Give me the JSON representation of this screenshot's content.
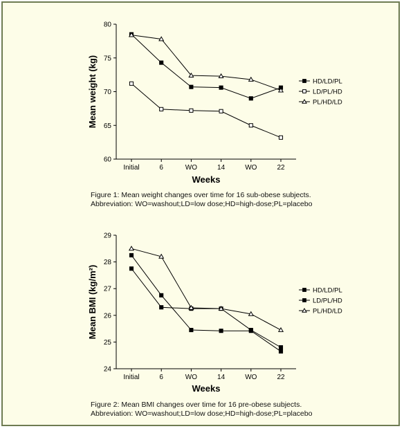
{
  "chart_data": [
    {
      "type": "line",
      "title": "",
      "xlabel": "Weeks",
      "ylabel": "Mean weight (kg)",
      "categories": [
        "Initial",
        "6",
        "WO",
        "14",
        "WO",
        "22"
      ],
      "ylim": [
        60,
        80
      ],
      "yticks": [
        "60",
        "65",
        "70",
        "75",
        "80"
      ],
      "grid": false,
      "legend_position": "right",
      "series": [
        {
          "name": "HD/LD/PL",
          "marker": "filled-square",
          "values": [
            78.5,
            74.3,
            70.7,
            70.6,
            69.0,
            70.6
          ]
        },
        {
          "name": "LD/PL/HD",
          "marker": "open-square",
          "values": [
            71.2,
            67.4,
            67.2,
            67.1,
            65.0,
            63.2
          ]
        },
        {
          "name": "PL/HD/LD",
          "marker": "open-triangle",
          "values": [
            78.4,
            77.8,
            72.4,
            72.3,
            71.8,
            70.2
          ]
        }
      ],
      "caption": [
        "Figure 1: Mean weight changes over time for 16 sub-obese subjects.",
        "Abbreviation: WO=washout;LD=low dose;HD=high-dose;PL=placebo"
      ]
    },
    {
      "type": "line",
      "title": "",
      "xlabel": "Weeks",
      "ylabel": "Mean BMI (kg/m²)",
      "categories": [
        "Initial",
        "6",
        "WO",
        "14",
        "WO",
        "22"
      ],
      "ylim": [
        24,
        29
      ],
      "yticks": [
        "24",
        "25",
        "26",
        "27",
        "28",
        "29"
      ],
      "grid": false,
      "legend_position": "right",
      "series": [
        {
          "name": "HD/LD/PL",
          "marker": "filled-square",
          "values": [
            27.75,
            26.3,
            26.25,
            26.25,
            25.45,
            24.8
          ]
        },
        {
          "name": "LD/PL/HD",
          "marker": "filled-square",
          "values": [
            28.25,
            26.75,
            25.45,
            25.42,
            25.42,
            24.65
          ]
        },
        {
          "name": "PL/HD/LD",
          "marker": "open-triangle",
          "values": [
            28.5,
            28.2,
            26.28,
            26.25,
            26.05,
            25.45
          ]
        }
      ],
      "caption": [
        "Figure 2: Mean BMI changes over time for 16 pre-obese subjects.",
        "Abbreviation: WO=washout;LD=low dose;HD=high-dose;PL=placebo"
      ]
    }
  ]
}
